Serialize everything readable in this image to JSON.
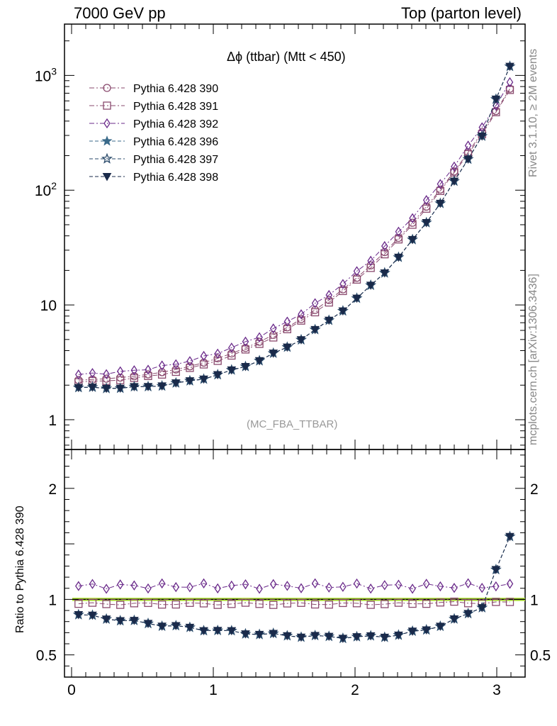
{
  "header": {
    "left": "7000 GeV pp",
    "right": "Top (parton level)"
  },
  "side_labels": {
    "top": "Rivet 3.1.10, ≥ 2M events",
    "bottom": "mcplots.cern.ch [arXiv:1306.3436]"
  },
  "chart_data": {
    "type": "line",
    "title": "Δϕ (ttbar) (Mtt < 450)",
    "reference_label": "(MC_FBA_TTBAR)",
    "xlabel": "",
    "ylabel": "",
    "ratio_ylabel": "Ratio to Pythia 6.428 390",
    "xlim": [
      -0.05,
      3.2
    ],
    "ylim": [
      0.55,
      2800
    ],
    "yscale": "log",
    "ratio_ylim": [
      0.3,
      2.35
    ],
    "x_ticks": [
      "0",
      "1",
      "2",
      "3"
    ],
    "y_ticks": [
      "1",
      "10",
      "10^2",
      "10^3"
    ],
    "ratio_ticks": [
      "0.5",
      "1",
      "2"
    ],
    "legend_position": "top-left",
    "reference_band_color": "#bbee44",
    "series": [
      {
        "name": "Pythia 6.428 390",
        "color": "#8a4a6e",
        "marker": "circle",
        "dash": "7,3,2,3",
        "base": 2.2,
        "ratio": "ref"
      },
      {
        "name": "Pythia 6.428 391",
        "color": "#8a4a6e",
        "marker": "square",
        "dash": "7,3,2,3",
        "base": 2.1,
        "ratio": "low"
      },
      {
        "name": "Pythia 6.428 392",
        "color": "#6a2a8a",
        "marker": "diamond",
        "dash": "7,3,2,3",
        "base": 2.45,
        "ratio": "high"
      },
      {
        "name": "Pythia 6.428 396",
        "color": "#3a6a8a",
        "marker": "star",
        "dash": "5,3",
        "base": 1.9,
        "ratio": "dip"
      },
      {
        "name": "Pythia 6.428 397",
        "color": "#2a4a6a",
        "marker": "star-open",
        "dash": "5,3",
        "base": 1.88,
        "ratio": "dip"
      },
      {
        "name": "Pythia 6.428 398",
        "color": "#1a2a4a",
        "marker": "tri-down",
        "dash": "5,3",
        "base": 1.86,
        "ratio": "dip"
      }
    ]
  }
}
